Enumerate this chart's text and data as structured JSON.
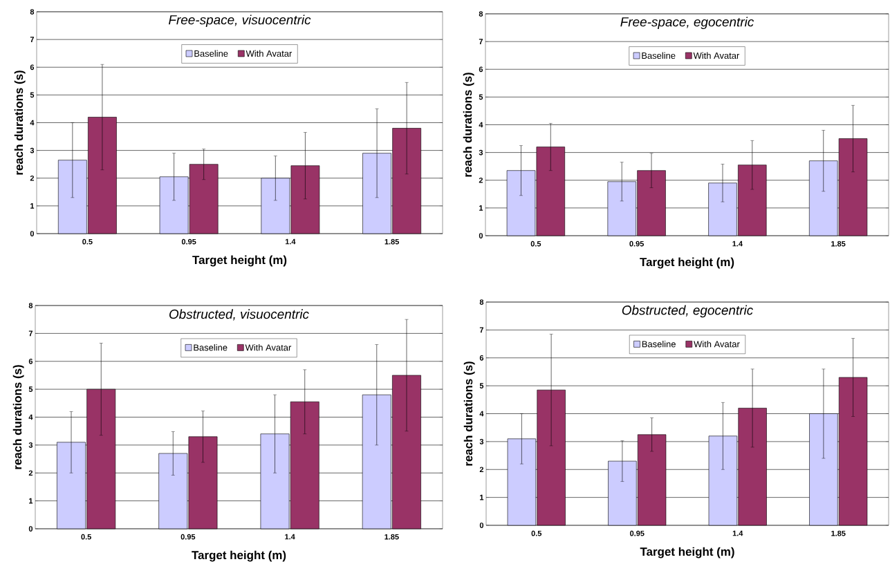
{
  "chart_data": [
    {
      "type": "bar",
      "title": "Free-space, visuocentric",
      "xlabel": "Target height (m)",
      "ylabel": "reach durations (s)",
      "categories": [
        "0.5",
        "0.95",
        "1.4",
        "1.85"
      ],
      "ylim": [
        0,
        8
      ],
      "yticks": [
        0,
        1,
        2,
        3,
        4,
        5,
        6,
        7,
        8
      ],
      "grid": "y",
      "legend": "top",
      "series": [
        {
          "name": "Baseline",
          "color": "#ccccff",
          "values": [
            2.65,
            2.05,
            2.0,
            2.9
          ],
          "errors": [
            1.35,
            0.85,
            0.8,
            1.6
          ]
        },
        {
          "name": "With Avatar",
          "color": "#993366",
          "values": [
            4.2,
            2.5,
            2.45,
            3.8
          ],
          "errors": [
            1.9,
            0.55,
            1.2,
            1.65
          ]
        }
      ]
    },
    {
      "type": "bar",
      "title": "Free-space, egocentric",
      "xlabel": "Target height (m)",
      "ylabel": "reach durations (s)",
      "categories": [
        "0.5",
        "0.95",
        "1.4",
        "1.85"
      ],
      "ylim": [
        0,
        8
      ],
      "yticks": [
        0,
        1,
        2,
        3,
        4,
        5,
        6,
        7,
        8
      ],
      "grid": "y",
      "legend": "top",
      "series": [
        {
          "name": "Baseline",
          "color": "#ccccff",
          "values": [
            2.35,
            1.95,
            1.9,
            2.7
          ],
          "errors": [
            0.9,
            0.7,
            0.68,
            1.1
          ]
        },
        {
          "name": "With Avatar",
          "color": "#993366",
          "values": [
            3.2,
            2.35,
            2.55,
            3.5
          ],
          "errors": [
            0.85,
            0.62,
            0.88,
            1.2
          ]
        }
      ]
    },
    {
      "type": "bar",
      "title": "Obstructed, visuocentric",
      "xlabel": "Target height (m)",
      "ylabel": "reach durations (s)",
      "categories": [
        "0.5",
        "0.95",
        "1.4",
        "1.85"
      ],
      "ylim": [
        0,
        8
      ],
      "yticks": [
        0,
        1,
        2,
        3,
        4,
        5,
        6,
        7,
        8
      ],
      "grid": "y",
      "legend": "top",
      "series": [
        {
          "name": "Baseline",
          "color": "#ccccff",
          "values": [
            3.1,
            2.7,
            3.4,
            4.8
          ],
          "errors": [
            1.1,
            0.78,
            1.4,
            1.8
          ]
        },
        {
          "name": "With Avatar",
          "color": "#993366",
          "values": [
            5.0,
            3.3,
            4.55,
            5.5
          ],
          "errors": [
            1.65,
            0.92,
            1.15,
            2.0
          ]
        }
      ]
    },
    {
      "type": "bar",
      "title": "Obstructed, egocentric",
      "xlabel": "Target height (m)",
      "ylabel": "reach durations (s)",
      "categories": [
        "0.5",
        "0.95",
        "1.4",
        "1.85"
      ],
      "ylim": [
        0,
        8
      ],
      "yticks": [
        0,
        1,
        2,
        3,
        4,
        5,
        6,
        7,
        8
      ],
      "grid": "y",
      "legend": "top",
      "series": [
        {
          "name": "Baseline",
          "color": "#ccccff",
          "values": [
            3.1,
            2.3,
            3.2,
            4.0
          ],
          "errors": [
            0.9,
            0.73,
            1.2,
            1.6
          ]
        },
        {
          "name": "With Avatar",
          "color": "#993366",
          "values": [
            4.85,
            3.25,
            4.2,
            5.3
          ],
          "errors": [
            2.0,
            0.6,
            1.4,
            1.4
          ]
        }
      ]
    }
  ]
}
